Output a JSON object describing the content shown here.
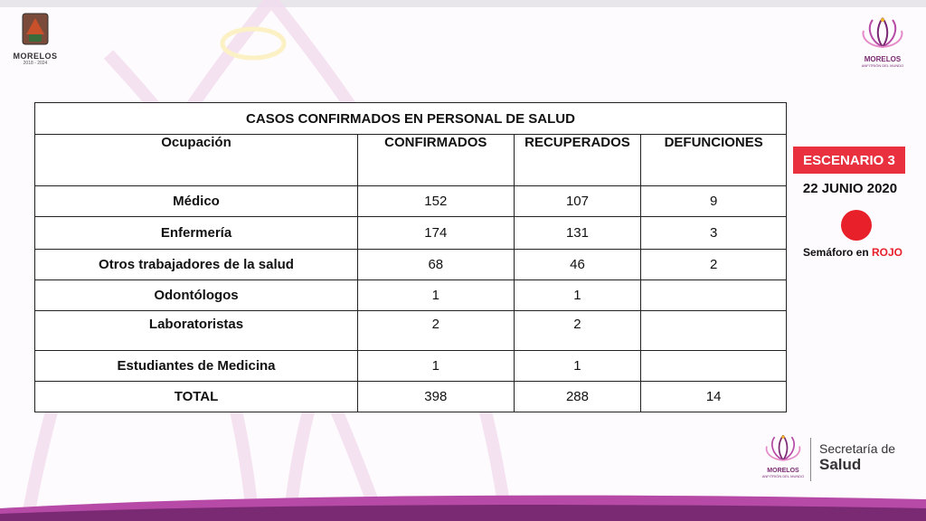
{
  "header": {
    "left_logo": {
      "name": "MORELOS",
      "years": "2018 - 2024"
    },
    "right_logo": {
      "name": "MORELOS",
      "tagline": "ANFITRIÓN DEL MUNDO"
    }
  },
  "table": {
    "title": "CASOS CONFIRMADOS EN PERSONAL DE SALUD",
    "columns": [
      "Ocupación",
      "CONFIRMADOS",
      "RECUPERADOS",
      "DEFUNCIONES"
    ],
    "rows": [
      {
        "occupation": "Médico",
        "confirmed": "152",
        "recovered": "107",
        "deaths": "9"
      },
      {
        "occupation": "Enfermería",
        "confirmed": "174",
        "recovered": "131",
        "deaths": "3"
      },
      {
        "occupation": "Otros trabajadores de la salud",
        "confirmed": "68",
        "recovered": "46",
        "deaths": "2"
      },
      {
        "occupation": "Odontólogos",
        "confirmed": "1",
        "recovered": "1",
        "deaths": ""
      },
      {
        "occupation": "Laboratoristas",
        "confirmed": "2",
        "recovered": "2",
        "deaths": ""
      },
      {
        "occupation": "Estudiantes de Medicina",
        "confirmed": "1",
        "recovered": "1",
        "deaths": ""
      },
      {
        "occupation": "TOTAL",
        "confirmed": "398",
        "recovered": "288",
        "deaths": "14"
      }
    ]
  },
  "status": {
    "scenario": "ESCENARIO 3",
    "date": "22 JUNIO 2020",
    "semaforo_prefix": "Semáforo en",
    "semaforo_color_word": "ROJO",
    "semaforo_color": "#e8202a"
  },
  "footer": {
    "logo_name": "MORELOS",
    "logo_tagline": "ANFITRIÓN DEL MUNDO",
    "dept_line1": "Secretaría de",
    "dept_line2": "Salud"
  },
  "colors": {
    "accent_red": "#e8303f",
    "brand_purple": "#7a2a73",
    "band_magenta": "#8b2a7d"
  }
}
